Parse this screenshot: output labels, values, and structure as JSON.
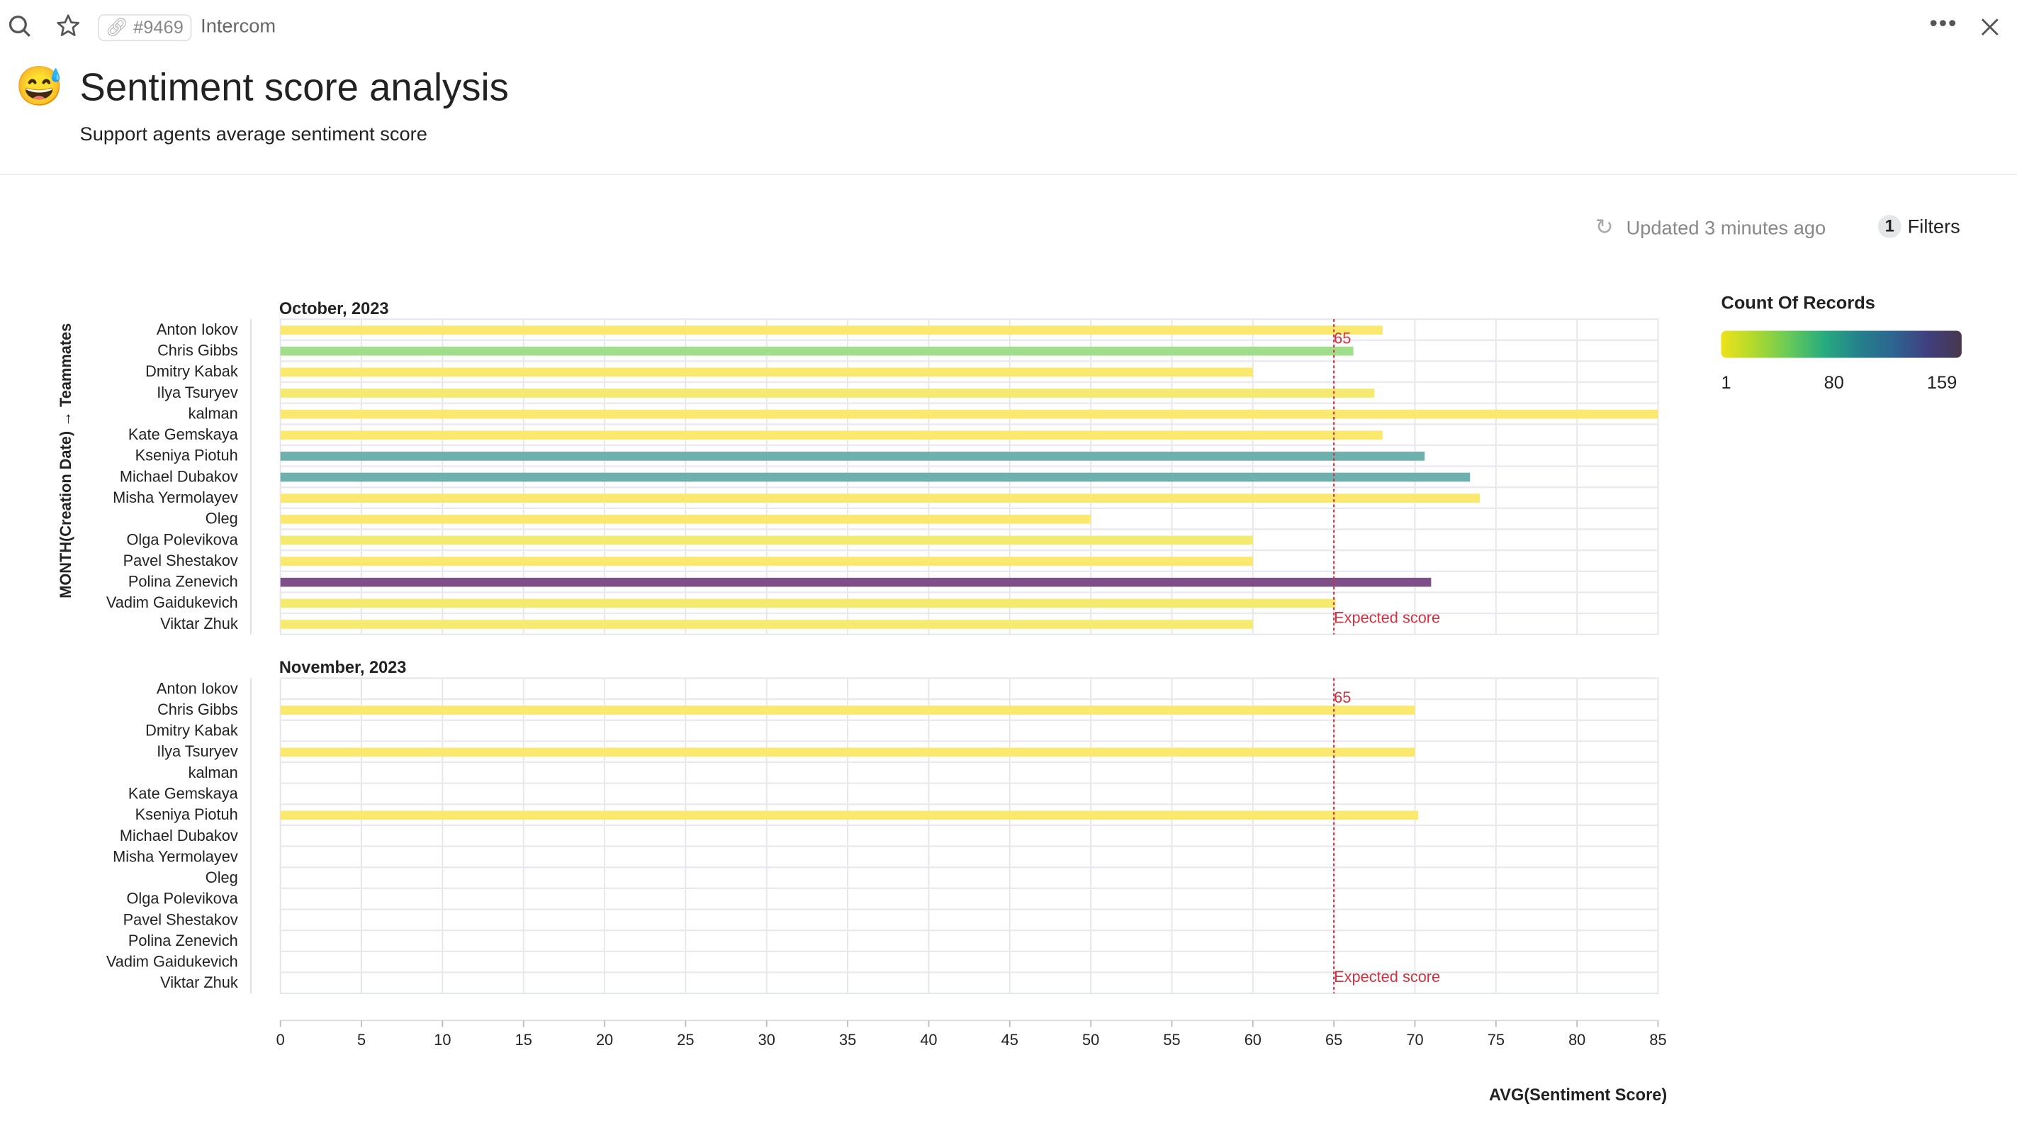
{
  "topbar": {
    "search_icon": "search-icon",
    "star_icon": "star-icon",
    "link_tag": "#9469",
    "app_name": "Intercom",
    "more_icon": "more-horizontal-icon",
    "close_icon": "close-icon"
  },
  "header": {
    "emoji": "😅",
    "title": "Sentiment score analysis",
    "subtitle": "Support agents average sentiment score"
  },
  "status": {
    "updated": "Updated 3 minutes ago",
    "filters_count": "1",
    "filters_label": "Filters"
  },
  "legend": {
    "title": "Count Of Records",
    "min": "1",
    "mid": "80",
    "max": "159",
    "gradient": [
      "#ede21a",
      "#aed92e",
      "#66c959",
      "#27ab7e",
      "#25818c",
      "#2d6590",
      "#403f7f",
      "#48384e"
    ]
  },
  "chart_data": {
    "type": "bar",
    "orientation": "horizontal",
    "ylabel": "MONTH(Creation Date) → Teammates",
    "xlabel": "AVG(Sentiment Score)",
    "xlim": [
      0,
      85
    ],
    "xticks": [
      0,
      5,
      10,
      15,
      20,
      25,
      30,
      35,
      40,
      45,
      50,
      55,
      60,
      65,
      70,
      75,
      80,
      85
    ],
    "grid": true,
    "categories": [
      "Anton Iokov",
      "Chris Gibbs",
      "Dmitry Kabak",
      "Ilya Tsuryev",
      "kalman",
      "Kate Gemskaya",
      "Kseniya Piotuh",
      "Michael Dubakov",
      "Misha Yermolayev",
      "Oleg",
      "Olga Polevikova",
      "Pavel Shestakov",
      "Polina Zenevich",
      "Vadim Gaidukevich",
      "Viktar Zhuk"
    ],
    "reference_line": {
      "value": 65,
      "value_label": "65",
      "label": "Expected score",
      "color": "#d0323f"
    },
    "panels": [
      {
        "title": "October, 2023",
        "values": [
          68,
          66.2,
          60,
          67.5,
          85,
          68,
          70.6,
          73.4,
          74,
          50,
          60,
          60,
          71,
          65.1,
          60
        ],
        "colors": [
          "#fbe96f",
          "#a0de8c",
          "#fbe96f",
          "#f5ea70",
          "#fbe96f",
          "#fbe96f",
          "#6db0ad",
          "#6db0ad",
          "#fbe96f",
          "#fbe96f",
          "#f3ea70",
          "#fbe96f",
          "#7f4f87",
          "#f5ea70",
          "#f7ea70"
        ]
      },
      {
        "title": "November, 2023",
        "values": [
          null,
          70,
          null,
          70,
          null,
          null,
          70.2,
          null,
          null,
          null,
          null,
          null,
          null,
          null,
          null
        ],
        "colors": [
          null,
          "#fbe96f",
          null,
          "#fbe96f",
          null,
          null,
          "#fbe96f",
          null,
          null,
          null,
          null,
          null,
          null,
          null,
          null
        ]
      }
    ]
  }
}
